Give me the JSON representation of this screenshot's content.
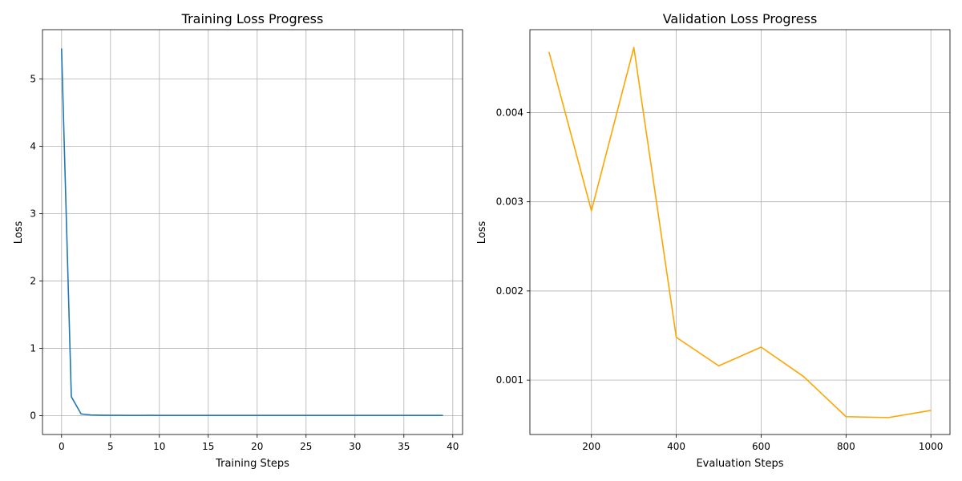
{
  "colors": {
    "train_line": "#1f77b4",
    "val_line": "#ffa500",
    "grid": "#b0b0b0",
    "axis": "#000000"
  },
  "chart_data": [
    {
      "type": "line",
      "title": "Training Loss Progress",
      "xlabel": "Training Steps",
      "ylabel": "Loss",
      "xlim": [
        -1.95,
        41.0
      ],
      "ylim": [
        -0.28,
        5.73
      ],
      "xticks": [
        0,
        5,
        10,
        15,
        20,
        25,
        30,
        35,
        40
      ],
      "yticks": [
        0,
        1,
        2,
        3,
        4,
        5
      ],
      "grid": true,
      "series": [
        {
          "x": [
            0,
            1,
            2,
            3,
            4,
            5,
            6,
            7,
            8,
            9,
            10,
            11,
            12,
            13,
            14,
            15,
            16,
            17,
            18,
            19,
            20,
            21,
            22,
            23,
            24,
            25,
            26,
            27,
            28,
            29,
            30,
            31,
            32,
            33,
            34,
            35,
            36,
            37,
            38,
            39
          ],
          "y": [
            5.45,
            0.28,
            0.025,
            0.01,
            0.006,
            0.005,
            0.005,
            0.004,
            0.004,
            0.005,
            0.004,
            0.004,
            0.004,
            0.004,
            0.004,
            0.003,
            0.003,
            0.003,
            0.003,
            0.003,
            0.003,
            0.003,
            0.003,
            0.003,
            0.003,
            0.003,
            0.003,
            0.003,
            0.003,
            0.003,
            0.003,
            0.003,
            0.003,
            0.003,
            0.003,
            0.003,
            0.003,
            0.003,
            0.003,
            0.003
          ]
        }
      ]
    },
    {
      "type": "line",
      "title": "Validation Loss Progress",
      "xlabel": "Evaluation Steps",
      "ylabel": "Loss",
      "xlim": [
        55,
        1045
      ],
      "ylim": [
        0.00039,
        0.00493
      ],
      "xticks": [
        200,
        400,
        600,
        800,
        1000
      ],
      "yticks": [
        0.001,
        0.002,
        0.003,
        0.004
      ],
      "grid": true,
      "series": [
        {
          "x": [
            100,
            200,
            300,
            400,
            500,
            600,
            700,
            800,
            900,
            1000
          ],
          "y": [
            0.00468,
            0.0029,
            0.00473,
            0.00148,
            0.00116,
            0.00137,
            0.00104,
            0.00059,
            0.00058,
            0.00066
          ]
        }
      ]
    }
  ]
}
